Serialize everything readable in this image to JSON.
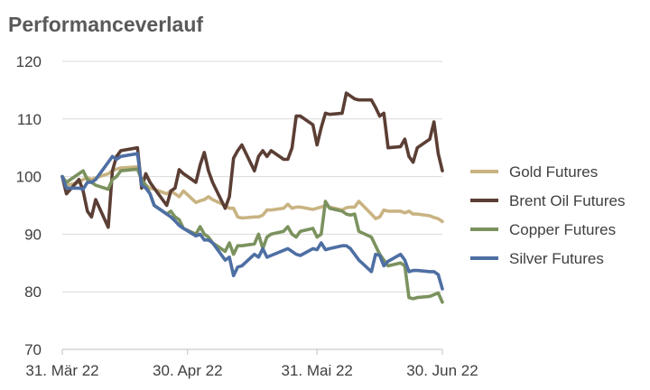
{
  "chart_data": {
    "type": "line",
    "title": "Performanceverlauf",
    "xlabel": "",
    "ylabel": "",
    "ylim": [
      70,
      120
    ],
    "yticks": [
      70,
      80,
      90,
      100,
      110,
      120
    ],
    "x_start": "2022-03-31",
    "x_end": "2022-06-30",
    "xticks": [
      {
        "date": "2022-03-31",
        "label": "31. Mär 22"
      },
      {
        "date": "2022-04-30",
        "label": "30. Apr 22"
      },
      {
        "date": "2022-05-31",
        "label": "31. Mai 22"
      },
      {
        "date": "2022-06-30",
        "label": "30. Jun 22"
      }
    ],
    "grid": true,
    "legend": "right",
    "series": [
      {
        "name": "Gold Futures",
        "color": "#c9b382",
        "points": [
          [
            "2022-03-31",
            100
          ],
          [
            "2022-04-01",
            98.5
          ],
          [
            "2022-04-04",
            99
          ],
          [
            "2022-04-05",
            99.5
          ],
          [
            "2022-04-06",
            99.8
          ],
          [
            "2022-04-07",
            99.5
          ],
          [
            "2022-04-08",
            99.8
          ],
          [
            "2022-04-11",
            100.5
          ],
          [
            "2022-04-12",
            101
          ],
          [
            "2022-04-13",
            101.3
          ],
          [
            "2022-04-14",
            101.5
          ],
          [
            "2022-04-18",
            101.7
          ],
          [
            "2022-04-19",
            99.5
          ],
          [
            "2022-04-20",
            98.5
          ],
          [
            "2022-04-21",
            98
          ],
          [
            "2022-04-22",
            97.8
          ],
          [
            "2022-04-25",
            97
          ],
          [
            "2022-04-26",
            97.5
          ],
          [
            "2022-04-27",
            97
          ],
          [
            "2022-04-28",
            96.5
          ],
          [
            "2022-04-29",
            97.5
          ],
          [
            "2022-05-02",
            95.5
          ],
          [
            "2022-05-03",
            95.8
          ],
          [
            "2022-05-04",
            96
          ],
          [
            "2022-05-05",
            96.5
          ],
          [
            "2022-05-06",
            96
          ],
          [
            "2022-05-09",
            95
          ],
          [
            "2022-05-10",
            94.5
          ],
          [
            "2022-05-11",
            94.5
          ],
          [
            "2022-05-12",
            93
          ],
          [
            "2022-05-13",
            92.8
          ],
          [
            "2022-05-16",
            93
          ],
          [
            "2022-05-17",
            93
          ],
          [
            "2022-05-18",
            93.3
          ],
          [
            "2022-05-19",
            94.2
          ],
          [
            "2022-05-20",
            94.2
          ],
          [
            "2022-05-23",
            94.5
          ],
          [
            "2022-05-24",
            95.2
          ],
          [
            "2022-05-25",
            94.5
          ],
          [
            "2022-05-26",
            94.7
          ],
          [
            "2022-05-27",
            94.7
          ],
          [
            "2022-05-30",
            94.3
          ],
          [
            "2022-05-31",
            94.5
          ],
          [
            "2022-06-01",
            94.7
          ],
          [
            "2022-06-02",
            95
          ],
          [
            "2022-06-03",
            94.7
          ],
          [
            "2022-06-06",
            94.2
          ],
          [
            "2022-06-07",
            94.6
          ],
          [
            "2022-06-08",
            94.7
          ],
          [
            "2022-06-09",
            94.7
          ],
          [
            "2022-06-10",
            95.7
          ],
          [
            "2022-06-13",
            93.5
          ],
          [
            "2022-06-14",
            92.7
          ],
          [
            "2022-06-15",
            93
          ],
          [
            "2022-06-16",
            94.2
          ],
          [
            "2022-06-17",
            94
          ],
          [
            "2022-06-20",
            94
          ],
          [
            "2022-06-21",
            93.7
          ],
          [
            "2022-06-22",
            94
          ],
          [
            "2022-06-23",
            93.5
          ],
          [
            "2022-06-24",
            93.5
          ],
          [
            "2022-06-27",
            93.2
          ],
          [
            "2022-06-28",
            92.9
          ],
          [
            "2022-06-29",
            92.7
          ],
          [
            "2022-06-30",
            92.2
          ]
        ]
      },
      {
        "name": "Brent Oil Futures",
        "color": "#5b3e34",
        "points": [
          [
            "2022-03-31",
            100
          ],
          [
            "2022-04-01",
            97
          ],
          [
            "2022-04-04",
            99.5
          ],
          [
            "2022-04-05",
            97.5
          ],
          [
            "2022-04-06",
            94
          ],
          [
            "2022-04-07",
            93
          ],
          [
            "2022-04-08",
            96
          ],
          [
            "2022-04-11",
            91.2
          ],
          [
            "2022-04-12",
            101
          ],
          [
            "2022-04-13",
            103.5
          ],
          [
            "2022-04-14",
            104.5
          ],
          [
            "2022-04-18",
            105
          ],
          [
            "2022-04-19",
            98
          ],
          [
            "2022-04-20",
            100.5
          ],
          [
            "2022-04-21",
            99
          ],
          [
            "2022-04-22",
            98
          ],
          [
            "2022-04-25",
            95
          ],
          [
            "2022-04-26",
            97.5
          ],
          [
            "2022-04-27",
            98
          ],
          [
            "2022-04-28",
            101.2
          ],
          [
            "2022-04-29",
            100.5
          ],
          [
            "2022-05-02",
            99
          ],
          [
            "2022-05-03",
            102
          ],
          [
            "2022-05-04",
            104.2
          ],
          [
            "2022-05-05",
            101
          ],
          [
            "2022-05-06",
            99
          ],
          [
            "2022-05-09",
            94.5
          ],
          [
            "2022-05-10",
            96.5
          ],
          [
            "2022-05-11",
            103.2
          ],
          [
            "2022-05-12",
            104.5
          ],
          [
            "2022-05-13",
            105.5
          ],
          [
            "2022-05-16",
            101
          ],
          [
            "2022-05-17",
            103.5
          ],
          [
            "2022-05-18",
            104.5
          ],
          [
            "2022-05-19",
            103.5
          ],
          [
            "2022-05-20",
            104.5
          ],
          [
            "2022-05-23",
            103
          ],
          [
            "2022-05-24",
            103
          ],
          [
            "2022-05-25",
            105
          ],
          [
            "2022-05-26",
            110.5
          ],
          [
            "2022-05-27",
            110.5
          ],
          [
            "2022-05-30",
            109
          ],
          [
            "2022-05-31",
            105.5
          ],
          [
            "2022-06-01",
            108.5
          ],
          [
            "2022-06-02",
            111
          ],
          [
            "2022-06-03",
            110.8
          ],
          [
            "2022-06-06",
            111
          ],
          [
            "2022-06-07",
            114.5
          ],
          [
            "2022-06-08",
            114
          ],
          [
            "2022-06-09",
            113.5
          ],
          [
            "2022-06-10",
            113.3
          ],
          [
            "2022-06-13",
            113.3
          ],
          [
            "2022-06-14",
            112
          ],
          [
            "2022-06-15",
            110.5
          ],
          [
            "2022-06-16",
            111
          ],
          [
            "2022-06-17",
            105
          ],
          [
            "2022-06-20",
            105.2
          ],
          [
            "2022-06-21",
            106.5
          ],
          [
            "2022-06-22",
            103.5
          ],
          [
            "2022-06-23",
            102.5
          ],
          [
            "2022-06-24",
            105
          ],
          [
            "2022-06-27",
            106.5
          ],
          [
            "2022-06-28",
            109.5
          ],
          [
            "2022-06-29",
            104
          ],
          [
            "2022-06-30",
            101
          ]
        ]
      },
      {
        "name": "Copper Futures",
        "color": "#7b925e",
        "points": [
          [
            "2022-03-31",
            100
          ],
          [
            "2022-04-01",
            99
          ],
          [
            "2022-04-04",
            100.5
          ],
          [
            "2022-04-05",
            101
          ],
          [
            "2022-04-06",
            99.5
          ],
          [
            "2022-04-07",
            99
          ],
          [
            "2022-04-08",
            98.5
          ],
          [
            "2022-04-11",
            97.8
          ],
          [
            "2022-04-12",
            99.5
          ],
          [
            "2022-04-13",
            100
          ],
          [
            "2022-04-14",
            101
          ],
          [
            "2022-04-18",
            101.3
          ],
          [
            "2022-04-19",
            99.5
          ],
          [
            "2022-04-20",
            98.5
          ],
          [
            "2022-04-21",
            97
          ],
          [
            "2022-04-22",
            95
          ],
          [
            "2022-04-25",
            93.5
          ],
          [
            "2022-04-26",
            94
          ],
          [
            "2022-04-27",
            93
          ],
          [
            "2022-04-28",
            92.5
          ],
          [
            "2022-04-29",
            91
          ],
          [
            "2022-05-02",
            90
          ],
          [
            "2022-05-03",
            91.3
          ],
          [
            "2022-05-04",
            90
          ],
          [
            "2022-05-05",
            89.5
          ],
          [
            "2022-05-06",
            88.5
          ],
          [
            "2022-05-09",
            87
          ],
          [
            "2022-05-10",
            88.5
          ],
          [
            "2022-05-11",
            86.5
          ],
          [
            "2022-05-12",
            88
          ],
          [
            "2022-05-13",
            88
          ],
          [
            "2022-05-16",
            88.3
          ],
          [
            "2022-05-17",
            90
          ],
          [
            "2022-05-18",
            87.5
          ],
          [
            "2022-05-19",
            89.5
          ],
          [
            "2022-05-20",
            90
          ],
          [
            "2022-05-23",
            90.5
          ],
          [
            "2022-05-24",
            91.3
          ],
          [
            "2022-05-25",
            90
          ],
          [
            "2022-05-26",
            89.5
          ],
          [
            "2022-05-27",
            90.5
          ],
          [
            "2022-05-30",
            91
          ],
          [
            "2022-05-31",
            89.5
          ],
          [
            "2022-06-01",
            90
          ],
          [
            "2022-06-02",
            95.7
          ],
          [
            "2022-06-03",
            94.5
          ],
          [
            "2022-06-06",
            94
          ],
          [
            "2022-06-07",
            93.5
          ],
          [
            "2022-06-08",
            93.3
          ],
          [
            "2022-06-09",
            93.5
          ],
          [
            "2022-06-10",
            90.5
          ],
          [
            "2022-06-13",
            89.5
          ],
          [
            "2022-06-14",
            88
          ],
          [
            "2022-06-15",
            86.5
          ],
          [
            "2022-06-16",
            85.5
          ],
          [
            "2022-06-17",
            84.5
          ],
          [
            "2022-06-20",
            85
          ],
          [
            "2022-06-21",
            84.5
          ],
          [
            "2022-06-22",
            79
          ],
          [
            "2022-06-23",
            78.8
          ],
          [
            "2022-06-24",
            79
          ],
          [
            "2022-06-27",
            79.2
          ],
          [
            "2022-06-28",
            79.5
          ],
          [
            "2022-06-29",
            79.8
          ],
          [
            "2022-06-30",
            78.2
          ]
        ]
      },
      {
        "name": "Silver Futures",
        "color": "#4e6fa3",
        "points": [
          [
            "2022-03-31",
            100
          ],
          [
            "2022-04-01",
            98
          ],
          [
            "2022-04-04",
            98
          ],
          [
            "2022-04-05",
            97.8
          ],
          [
            "2022-04-06",
            99
          ],
          [
            "2022-04-07",
            99
          ],
          [
            "2022-04-08",
            99.5
          ],
          [
            "2022-04-11",
            102.5
          ],
          [
            "2022-04-12",
            103.5
          ],
          [
            "2022-04-13",
            103
          ],
          [
            "2022-04-14",
            103.5
          ],
          [
            "2022-04-18",
            104
          ],
          [
            "2022-04-19",
            98.5
          ],
          [
            "2022-04-20",
            98
          ],
          [
            "2022-04-21",
            97
          ],
          [
            "2022-04-22",
            95
          ],
          [
            "2022-04-25",
            93.5
          ],
          [
            "2022-04-26",
            93
          ],
          [
            "2022-04-27",
            92.3
          ],
          [
            "2022-04-28",
            91.5
          ],
          [
            "2022-04-29",
            91
          ],
          [
            "2022-05-02",
            89.7
          ],
          [
            "2022-05-03",
            90
          ],
          [
            "2022-05-04",
            89
          ],
          [
            "2022-05-05",
            89
          ],
          [
            "2022-05-06",
            88.5
          ],
          [
            "2022-05-09",
            85.5
          ],
          [
            "2022-05-10",
            86
          ],
          [
            "2022-05-11",
            82.8
          ],
          [
            "2022-05-12",
            84.3
          ],
          [
            "2022-05-13",
            84.5
          ],
          [
            "2022-05-16",
            86.5
          ],
          [
            "2022-05-17",
            86
          ],
          [
            "2022-05-18",
            87.5
          ],
          [
            "2022-05-19",
            86
          ],
          [
            "2022-05-20",
            86.3
          ],
          [
            "2022-05-23",
            87.2
          ],
          [
            "2022-05-24",
            87.5
          ],
          [
            "2022-05-25",
            87
          ],
          [
            "2022-05-26",
            86.5
          ],
          [
            "2022-05-27",
            86.3
          ],
          [
            "2022-05-30",
            87.5
          ],
          [
            "2022-05-31",
            87.3
          ],
          [
            "2022-06-01",
            88.5
          ],
          [
            "2022-06-02",
            87.3
          ],
          [
            "2022-06-03",
            87.5
          ],
          [
            "2022-06-06",
            88
          ],
          [
            "2022-06-07",
            88
          ],
          [
            "2022-06-08",
            87.5
          ],
          [
            "2022-06-09",
            86.5
          ],
          [
            "2022-06-10",
            85.5
          ],
          [
            "2022-06-13",
            83.5
          ],
          [
            "2022-06-14",
            86.5
          ],
          [
            "2022-06-15",
            86.3
          ],
          [
            "2022-06-16",
            84.5
          ],
          [
            "2022-06-17",
            85.3
          ],
          [
            "2022-06-20",
            86.5
          ],
          [
            "2022-06-21",
            85.5
          ],
          [
            "2022-06-22",
            83.5
          ],
          [
            "2022-06-23",
            83.7
          ],
          [
            "2022-06-24",
            83.7
          ],
          [
            "2022-06-27",
            83.5
          ],
          [
            "2022-06-28",
            83.5
          ],
          [
            "2022-06-29",
            83
          ],
          [
            "2022-06-30",
            80.5
          ]
        ]
      }
    ]
  }
}
